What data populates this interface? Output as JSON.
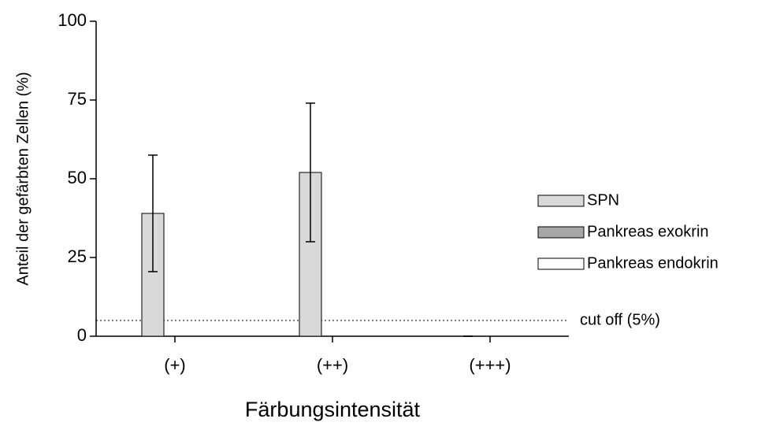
{
  "chart_data": {
    "type": "bar",
    "x_label": "Färbungsintensität",
    "y_label": "Anteil der gefärbten Zellen (%)",
    "categories": [
      "(+)",
      "(++)",
      "(+++)"
    ],
    "series": [
      {
        "name": "SPN",
        "color": "#d9d9d9",
        "values": [
          39,
          52,
          0
        ],
        "errors": [
          18.5,
          22,
          0
        ]
      },
      {
        "name": "Pankreas exokrin",
        "color": "#a6a6a6",
        "values": [
          0,
          0,
          0
        ]
      },
      {
        "name": "Pankreas endokrin",
        "color": "#ffffff",
        "values": [
          0,
          0,
          0
        ]
      }
    ],
    "ylim": [
      0,
      100
    ],
    "yticks": [
      0,
      25,
      50,
      75,
      100
    ],
    "reference_line": {
      "value": 5,
      "label": "cut off (5%)"
    },
    "legend": "right"
  }
}
